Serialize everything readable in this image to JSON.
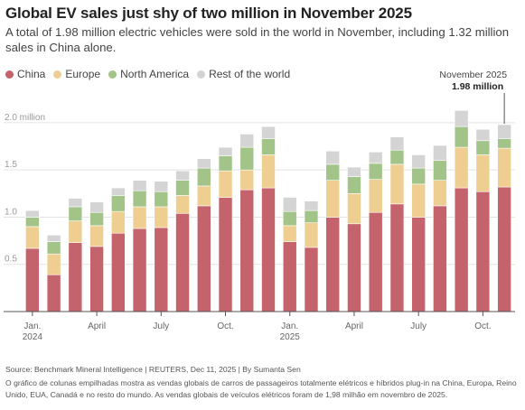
{
  "title": "Global EV sales just shy of two million in November 2025",
  "subtitle": "A total of 1.98 million electric vehicles were sold in the world in November, including 1.32 million sales in China alone.",
  "colors": {
    "China": "#c4636b",
    "Europe": "#efce91",
    "North America": "#a3c489",
    "Rest of the world": "#d4d4d4"
  },
  "chart_data": {
    "type": "bar",
    "stacked": true,
    "y_unit_label": "million",
    "ylim": [
      0,
      2.2
    ],
    "yticks": [
      0.5,
      1.0,
      1.5,
      2.0
    ],
    "ytick_labels": [
      "0.5",
      "1.0",
      "1.5",
      "2.0 million"
    ],
    "categories": [
      "2024-01",
      "2024-02",
      "2024-03",
      "2024-04",
      "2024-05",
      "2024-06",
      "2024-07",
      "2024-08",
      "2024-09",
      "2024-10",
      "2024-11",
      "2024-12",
      "2025-01",
      "2025-02",
      "2025-03",
      "2025-04",
      "2025-05",
      "2025-06",
      "2025-07",
      "2025-08",
      "2025-09",
      "2025-10",
      "2025-11"
    ],
    "x_tick_labels": [
      {
        "index": 0,
        "lines": [
          "Jan.",
          "2024"
        ]
      },
      {
        "index": 3,
        "lines": [
          "April"
        ]
      },
      {
        "index": 6,
        "lines": [
          "July"
        ]
      },
      {
        "index": 9,
        "lines": [
          "Oct."
        ]
      },
      {
        "index": 12,
        "lines": [
          "Jan.",
          "2025"
        ]
      },
      {
        "index": 15,
        "lines": [
          "April"
        ]
      },
      {
        "index": 18,
        "lines": [
          "July"
        ]
      },
      {
        "index": 21,
        "lines": [
          "Oct."
        ]
      }
    ],
    "series": [
      {
        "name": "China",
        "values": [
          0.67,
          0.39,
          0.73,
          0.69,
          0.83,
          0.88,
          0.89,
          1.04,
          1.12,
          1.21,
          1.29,
          1.31,
          0.74,
          0.68,
          1.0,
          0.93,
          1.05,
          1.14,
          1.0,
          1.12,
          1.31,
          1.27,
          1.32
        ]
      },
      {
        "name": "Europe",
        "values": [
          0.23,
          0.22,
          0.23,
          0.22,
          0.23,
          0.23,
          0.22,
          0.19,
          0.21,
          0.28,
          0.21,
          0.35,
          0.17,
          0.26,
          0.39,
          0.32,
          0.35,
          0.42,
          0.35,
          0.27,
          0.43,
          0.39,
          0.41
        ]
      },
      {
        "name": "North America",
        "values": [
          0.1,
          0.13,
          0.15,
          0.14,
          0.17,
          0.17,
          0.16,
          0.16,
          0.19,
          0.16,
          0.24,
          0.17,
          0.15,
          0.13,
          0.17,
          0.18,
          0.17,
          0.15,
          0.17,
          0.21,
          0.22,
          0.15,
          0.1
        ]
      },
      {
        "name": "Rest of the world",
        "values": [
          0.07,
          0.07,
          0.09,
          0.11,
          0.08,
          0.11,
          0.11,
          0.1,
          0.1,
          0.09,
          0.14,
          0.13,
          0.15,
          0.1,
          0.14,
          0.1,
          0.12,
          0.14,
          0.14,
          0.16,
          0.17,
          0.12,
          0.15
        ]
      }
    ],
    "annotation": {
      "index": 22,
      "label": "November 2025",
      "value_label": "1.98 million"
    },
    "grid": true,
    "legend": "top-left"
  },
  "source": "Source: Benchmark Mineral Intelligence  | REUTERS, Dec 11, 2025 | By Sumanta Sen",
  "note": "O gráfico de colunas empilhadas mostra as vendas globais de carros de passageiros totalmente elétricos e híbridos plug-in na China, Europa, Reino Unido, EUA, Canadá e no resto do mundo. As vendas globais de veículos elétricos foram de 1,98 milhão em novembro de 2025."
}
